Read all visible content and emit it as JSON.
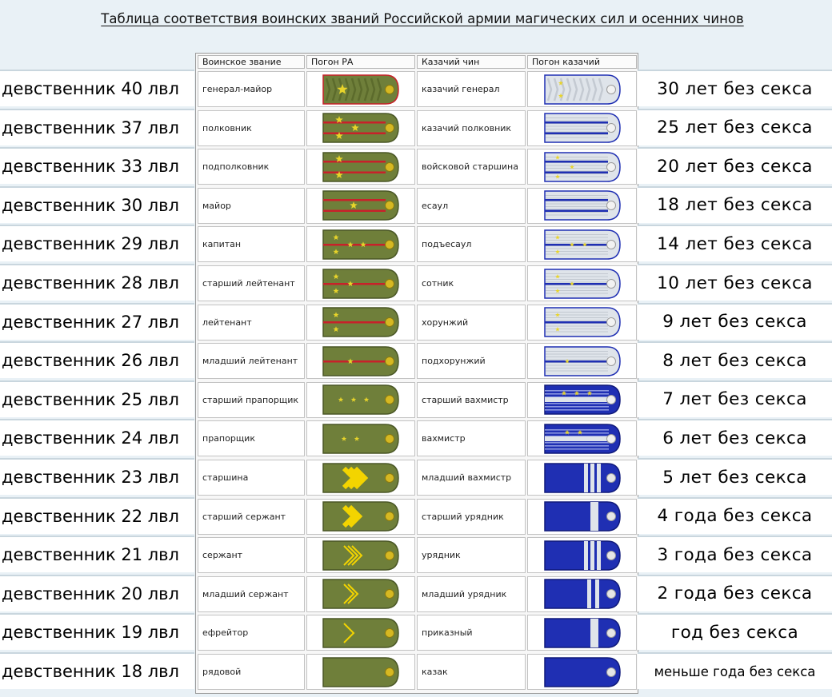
{
  "title": "Таблица соответствия воинских званий Российской армии магических сил и осенних чинов",
  "headers": [
    "Воинское звание",
    "Погон РА",
    "Казачий чин",
    "Погон казачий"
  ],
  "colors": {
    "ra_base": "#6f7f3a",
    "ra_stripe": "#c8212a",
    "star": "#e8d42a",
    "cossack_white": "#dfe4ea",
    "cossack_blue": "#1f2fb3",
    "gold_chevron": "#f3d400"
  },
  "rows": [
    {
      "virgin": "девственник 40 лвл",
      "rank": "генерал-майор",
      "cossack": "казачий генерал",
      "years": "30 лет без секса",
      "ra": {
        "type": "general",
        "stars": 1
      },
      "ck": {
        "type": "general",
        "stars": 2
      }
    },
    {
      "virgin": "девственник 37 лвл",
      "rank": "полковник",
      "cossack": "казачий полковник",
      "years": "25 лет без секса",
      "ra": {
        "type": "field",
        "stripes": 2,
        "stars": 3
      },
      "ck": {
        "type": "field",
        "stripes": 2,
        "stars": 0
      }
    },
    {
      "virgin": "девственник 33 лвл",
      "rank": "подполковник",
      "cossack": "войсковой старшина",
      "years": "20 лет без секса",
      "ra": {
        "type": "field",
        "stripes": 2,
        "stars": 2
      },
      "ck": {
        "type": "field",
        "stripes": 2,
        "stars": 3
      }
    },
    {
      "virgin": "девственник 30 лвл",
      "rank": "майор",
      "cossack": "есаул",
      "years": "18 лет без секса",
      "ra": {
        "type": "field",
        "stripes": 2,
        "stars": 1
      },
      "ck": {
        "type": "field",
        "stripes": 2,
        "stars": 0
      }
    },
    {
      "virgin": "девственник 29 лвл",
      "rank": "капитан",
      "cossack": "подъесаул",
      "years": "14 лет без секса",
      "ra": {
        "type": "company",
        "stars": 4
      },
      "ck": {
        "type": "company",
        "stars": 4
      }
    },
    {
      "virgin": "девственник 28 лвл",
      "rank": "старший лейтенант",
      "cossack": "сотник",
      "years": "10 лет без секса",
      "ra": {
        "type": "company",
        "stars": 3
      },
      "ck": {
        "type": "company",
        "stars": 3
      }
    },
    {
      "virgin": "девственник 27 лвл",
      "rank": "лейтенант",
      "cossack": "хорунжий",
      "years": "9 лет без секса",
      "ra": {
        "type": "company",
        "stars": 2
      },
      "ck": {
        "type": "company",
        "stars": 2
      }
    },
    {
      "virgin": "девственник 26 лвл",
      "rank": "младший лейтенант",
      "cossack": "подхорунжий",
      "years": "8 лет без секса",
      "ra": {
        "type": "company",
        "stars": 1
      },
      "ck": {
        "type": "company",
        "stars": 1
      }
    },
    {
      "virgin": "девственник 25 лвл",
      "rank": "старший прапорщик",
      "cossack": "старший вахмистр",
      "years": "7 лет без секса",
      "ra": {
        "type": "ensign",
        "stars": 3
      },
      "ck": {
        "type": "ensign",
        "stars": 3
      }
    },
    {
      "virgin": "девственник 24 лвл",
      "rank": "прапорщик",
      "cossack": "вахмистр",
      "years": "6 лет без секса",
      "ra": {
        "type": "ensign",
        "stars": 2
      },
      "ck": {
        "type": "ensign",
        "stars": 2
      }
    },
    {
      "virgin": "девственник 23 лвл",
      "rank": "старшина",
      "cossack": "младший вахмистр",
      "years": "5 лет без секса",
      "ra": {
        "type": "chevron",
        "count": 3
      },
      "ck": {
        "type": "nco",
        "bars": 3
      }
    },
    {
      "virgin": "девственник 22 лвл",
      "rank": "старший сержант",
      "cossack": "старший урядник",
      "years": "4 года без секса",
      "ra": {
        "type": "chevron",
        "count": 2
      },
      "ck": {
        "type": "nco",
        "bars": 1
      }
    },
    {
      "virgin": "девственник 21 лвл",
      "rank": "сержант",
      "cossack": "урядник",
      "years": "3 года без секса",
      "ra": {
        "type": "chevron",
        "count": 3,
        "thin": true
      },
      "ck": {
        "type": "nco",
        "bars": 3
      }
    },
    {
      "virgin": "девственник 20 лвл",
      "rank": "младший сержант",
      "cossack": "младший урядник",
      "years": "2 года без секса",
      "ra": {
        "type": "chevron",
        "count": 2,
        "thin": true
      },
      "ck": {
        "type": "nco",
        "bars": 2
      }
    },
    {
      "virgin": "девственник 19 лвл",
      "rank": "ефрейтор",
      "cossack": "приказный",
      "years": "год без секса",
      "ra": {
        "type": "chevron",
        "count": 1,
        "thin": true
      },
      "ck": {
        "type": "nco",
        "bars": 1
      }
    },
    {
      "virgin": "девственник 18 лвл",
      "rank": "рядовой",
      "cossack": "казак",
      "years": "меньше года без секса",
      "ra": {
        "type": "plain"
      },
      "ck": {
        "type": "nco",
        "bars": 0
      }
    }
  ]
}
